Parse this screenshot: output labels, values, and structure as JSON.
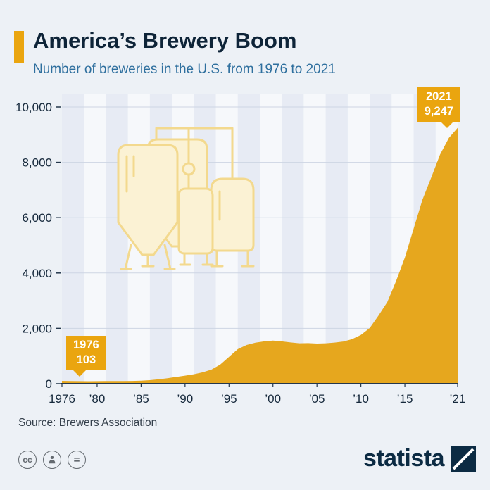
{
  "header": {
    "title": "America’s Brewery Boom",
    "subtitle": "Number of breweries in the U.S. from 1976 to 2021",
    "accent_color": "#EAA50F"
  },
  "chart_data": {
    "type": "area",
    "title": "Number of breweries in the U.S. from 1976 to 2021",
    "x": [
      1976,
      1977,
      1978,
      1979,
      1980,
      1981,
      1982,
      1983,
      1984,
      1985,
      1986,
      1987,
      1988,
      1989,
      1990,
      1991,
      1992,
      1993,
      1994,
      1995,
      1996,
      1997,
      1998,
      1999,
      2000,
      2001,
      2002,
      2003,
      2004,
      2005,
      2006,
      2007,
      2008,
      2009,
      2010,
      2011,
      2012,
      2013,
      2014,
      2015,
      2016,
      2017,
      2018,
      2019,
      2020,
      2021
    ],
    "values": [
      103,
      96,
      92,
      90,
      92,
      93,
      94,
      96,
      100,
      110,
      128,
      158,
      199,
      245,
      290,
      340,
      410,
      510,
      690,
      970,
      1250,
      1400,
      1480,
      1530,
      1560,
      1530,
      1490,
      1460,
      1465,
      1450,
      1460,
      1485,
      1525,
      1610,
      1760,
      2010,
      2460,
      2950,
      3710,
      4560,
      5610,
      6650,
      7450,
      8280,
      8880,
      9247
    ],
    "ylim": [
      0,
      10000
    ],
    "yticks": [
      0,
      2000,
      4000,
      6000,
      8000,
      10000
    ],
    "ytick_labels": [
      "0",
      "2,000",
      "4,000",
      "6,000",
      "8,000",
      "10,000"
    ],
    "xticks": [
      1976,
      1980,
      1985,
      1990,
      1995,
      2000,
      2005,
      2010,
      2015,
      2021
    ],
    "xtick_labels": [
      "1976",
      "’80",
      "’85",
      "’90",
      "’95",
      "’00",
      "’05",
      "’10",
      "’15",
      "’21"
    ],
    "grid": "horizontal",
    "legend": "none",
    "area_color": "#E6A71E",
    "stripe_colors": [
      "#E7EBF4",
      "#F6F8FB"
    ],
    "annotations": [
      {
        "year": "1976",
        "value": "103"
      },
      {
        "year": "2021",
        "value": "9,247"
      }
    ]
  },
  "footer": {
    "source": "Source: Brewers Association",
    "brand": "statista",
    "license_icons": [
      "cc-icon",
      "attribution-icon",
      "no-derivatives-icon"
    ]
  }
}
